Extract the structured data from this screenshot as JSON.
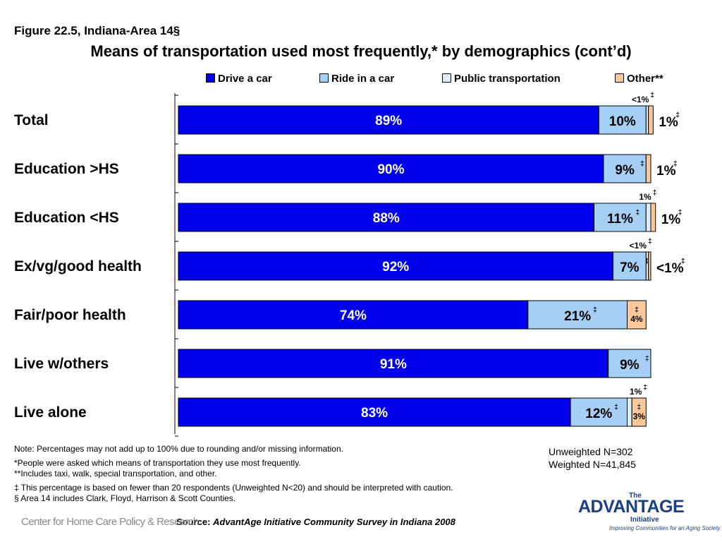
{
  "figure_label": "Figure 22.5, Indiana-Area 14§",
  "chart_data": {
    "type": "bar",
    "orientation": "horizontal",
    "stacked": true,
    "title": "Means of transportation used most frequently,* by demographics (cont’d)",
    "categories": [
      "Total",
      "Education >HS",
      "Education <HS",
      "Ex/vg/good health",
      "Fair/poor health",
      "Live w/others",
      "Live alone"
    ],
    "series": [
      {
        "name": "Drive a car",
        "color": "#0000ee",
        "values": [
          89,
          90,
          88,
          92,
          74,
          91,
          83
        ],
        "labels": [
          "89%",
          "90%",
          "88%",
          "92%",
          "74%",
          "91%",
          "83%"
        ],
        "label_mark": [
          "",
          "",
          "",
          "",
          "",
          "",
          ""
        ]
      },
      {
        "name": "Ride in a car",
        "color": "#a6cff5",
        "values": [
          10,
          9,
          11,
          7,
          21,
          9,
          12
        ],
        "labels": [
          "10%",
          "9%",
          "11%",
          "7%",
          "21%",
          "9%",
          "12%"
        ],
        "label_mark": [
          "",
          "‡",
          "‡",
          "‡",
          "‡",
          "‡",
          "‡"
        ]
      },
      {
        "name": "Public transportation",
        "color": "#ddeeff",
        "values": [
          0.5,
          0,
          1,
          0.5,
          0,
          0,
          1
        ],
        "labels": [
          "<1%",
          "",
          "1%",
          "<1%",
          "",
          "",
          "1%"
        ],
        "label_mark": [
          "‡",
          "",
          "‡",
          "‡",
          "",
          "",
          "‡"
        ]
      },
      {
        "name": "Other**",
        "color": "#fbc89c",
        "values": [
          1,
          1,
          1,
          0.5,
          4,
          0,
          3
        ],
        "labels": [
          "1%",
          "1%",
          "1%",
          "<1%",
          "4%",
          "",
          "3%"
        ],
        "label_mark": [
          "‡",
          "‡",
          "‡",
          "‡",
          "‡",
          "",
          "‡"
        ]
      }
    ],
    "xlim": [
      0,
      100
    ],
    "legend_position": "top",
    "grid": false
  },
  "notes": [
    "Note: Percentages may not add up to 100% due to rounding and/or missing information.",
    "*People were asked which means of transportation they use most frequently.",
    "**Includes taxi, walk, special transportation, and other.",
    "‡ This percentage is based on fewer than 20 respondents (Unweighted N<20) and should be interpreted with caution.",
    "§ Area 14 includes Clark, Floyd, Harrison & Scott Counties."
  ],
  "sample": {
    "unweighted": "Unweighted N=302",
    "weighted": "Weighted N=41,845"
  },
  "source": {
    "prefix": "Source:",
    "text": "AdvantAge Initiative Community Survey in Indiana 2008"
  },
  "logos": {
    "left": "Center for Home Care Policy & Research",
    "right_the": "The",
    "right_main": "ADVANTAGE",
    "right_sub": "Initiative",
    "right_tag": "Improving Communities for an Aging Society"
  }
}
